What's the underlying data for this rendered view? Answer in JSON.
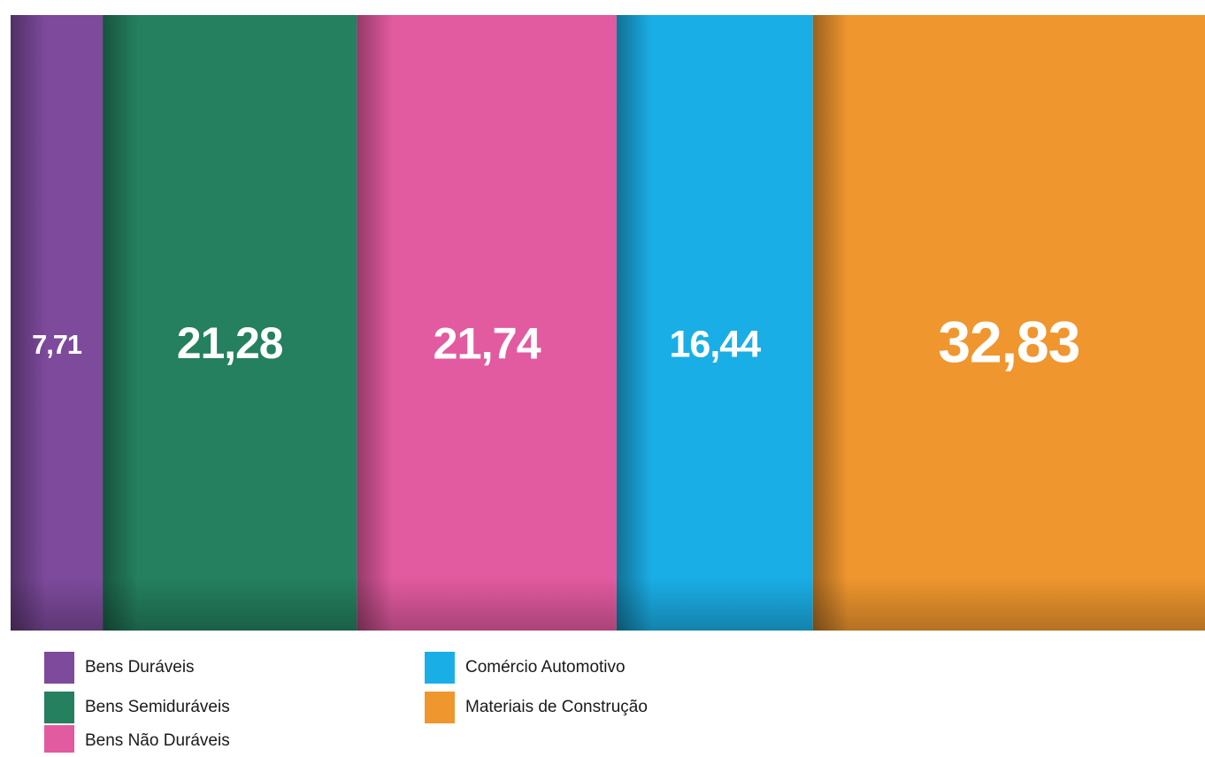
{
  "chart_data": {
    "type": "strip",
    "categories": [
      "Bens Duráveis",
      "Bens Semiduráveis",
      "Bens Não Duráveis",
      "Comércio Automotivo",
      "Materiais de Construção"
    ],
    "values": [
      7.71,
      21.28,
      21.74,
      16.44,
      32.83
    ],
    "value_labels": [
      "7,71",
      "21,28",
      "21,74",
      "16,44",
      "32,83"
    ],
    "colors": [
      "#7d4a9c",
      "#24805f",
      "#e25a9f",
      "#1aaee6",
      "#f0962e"
    ]
  }
}
